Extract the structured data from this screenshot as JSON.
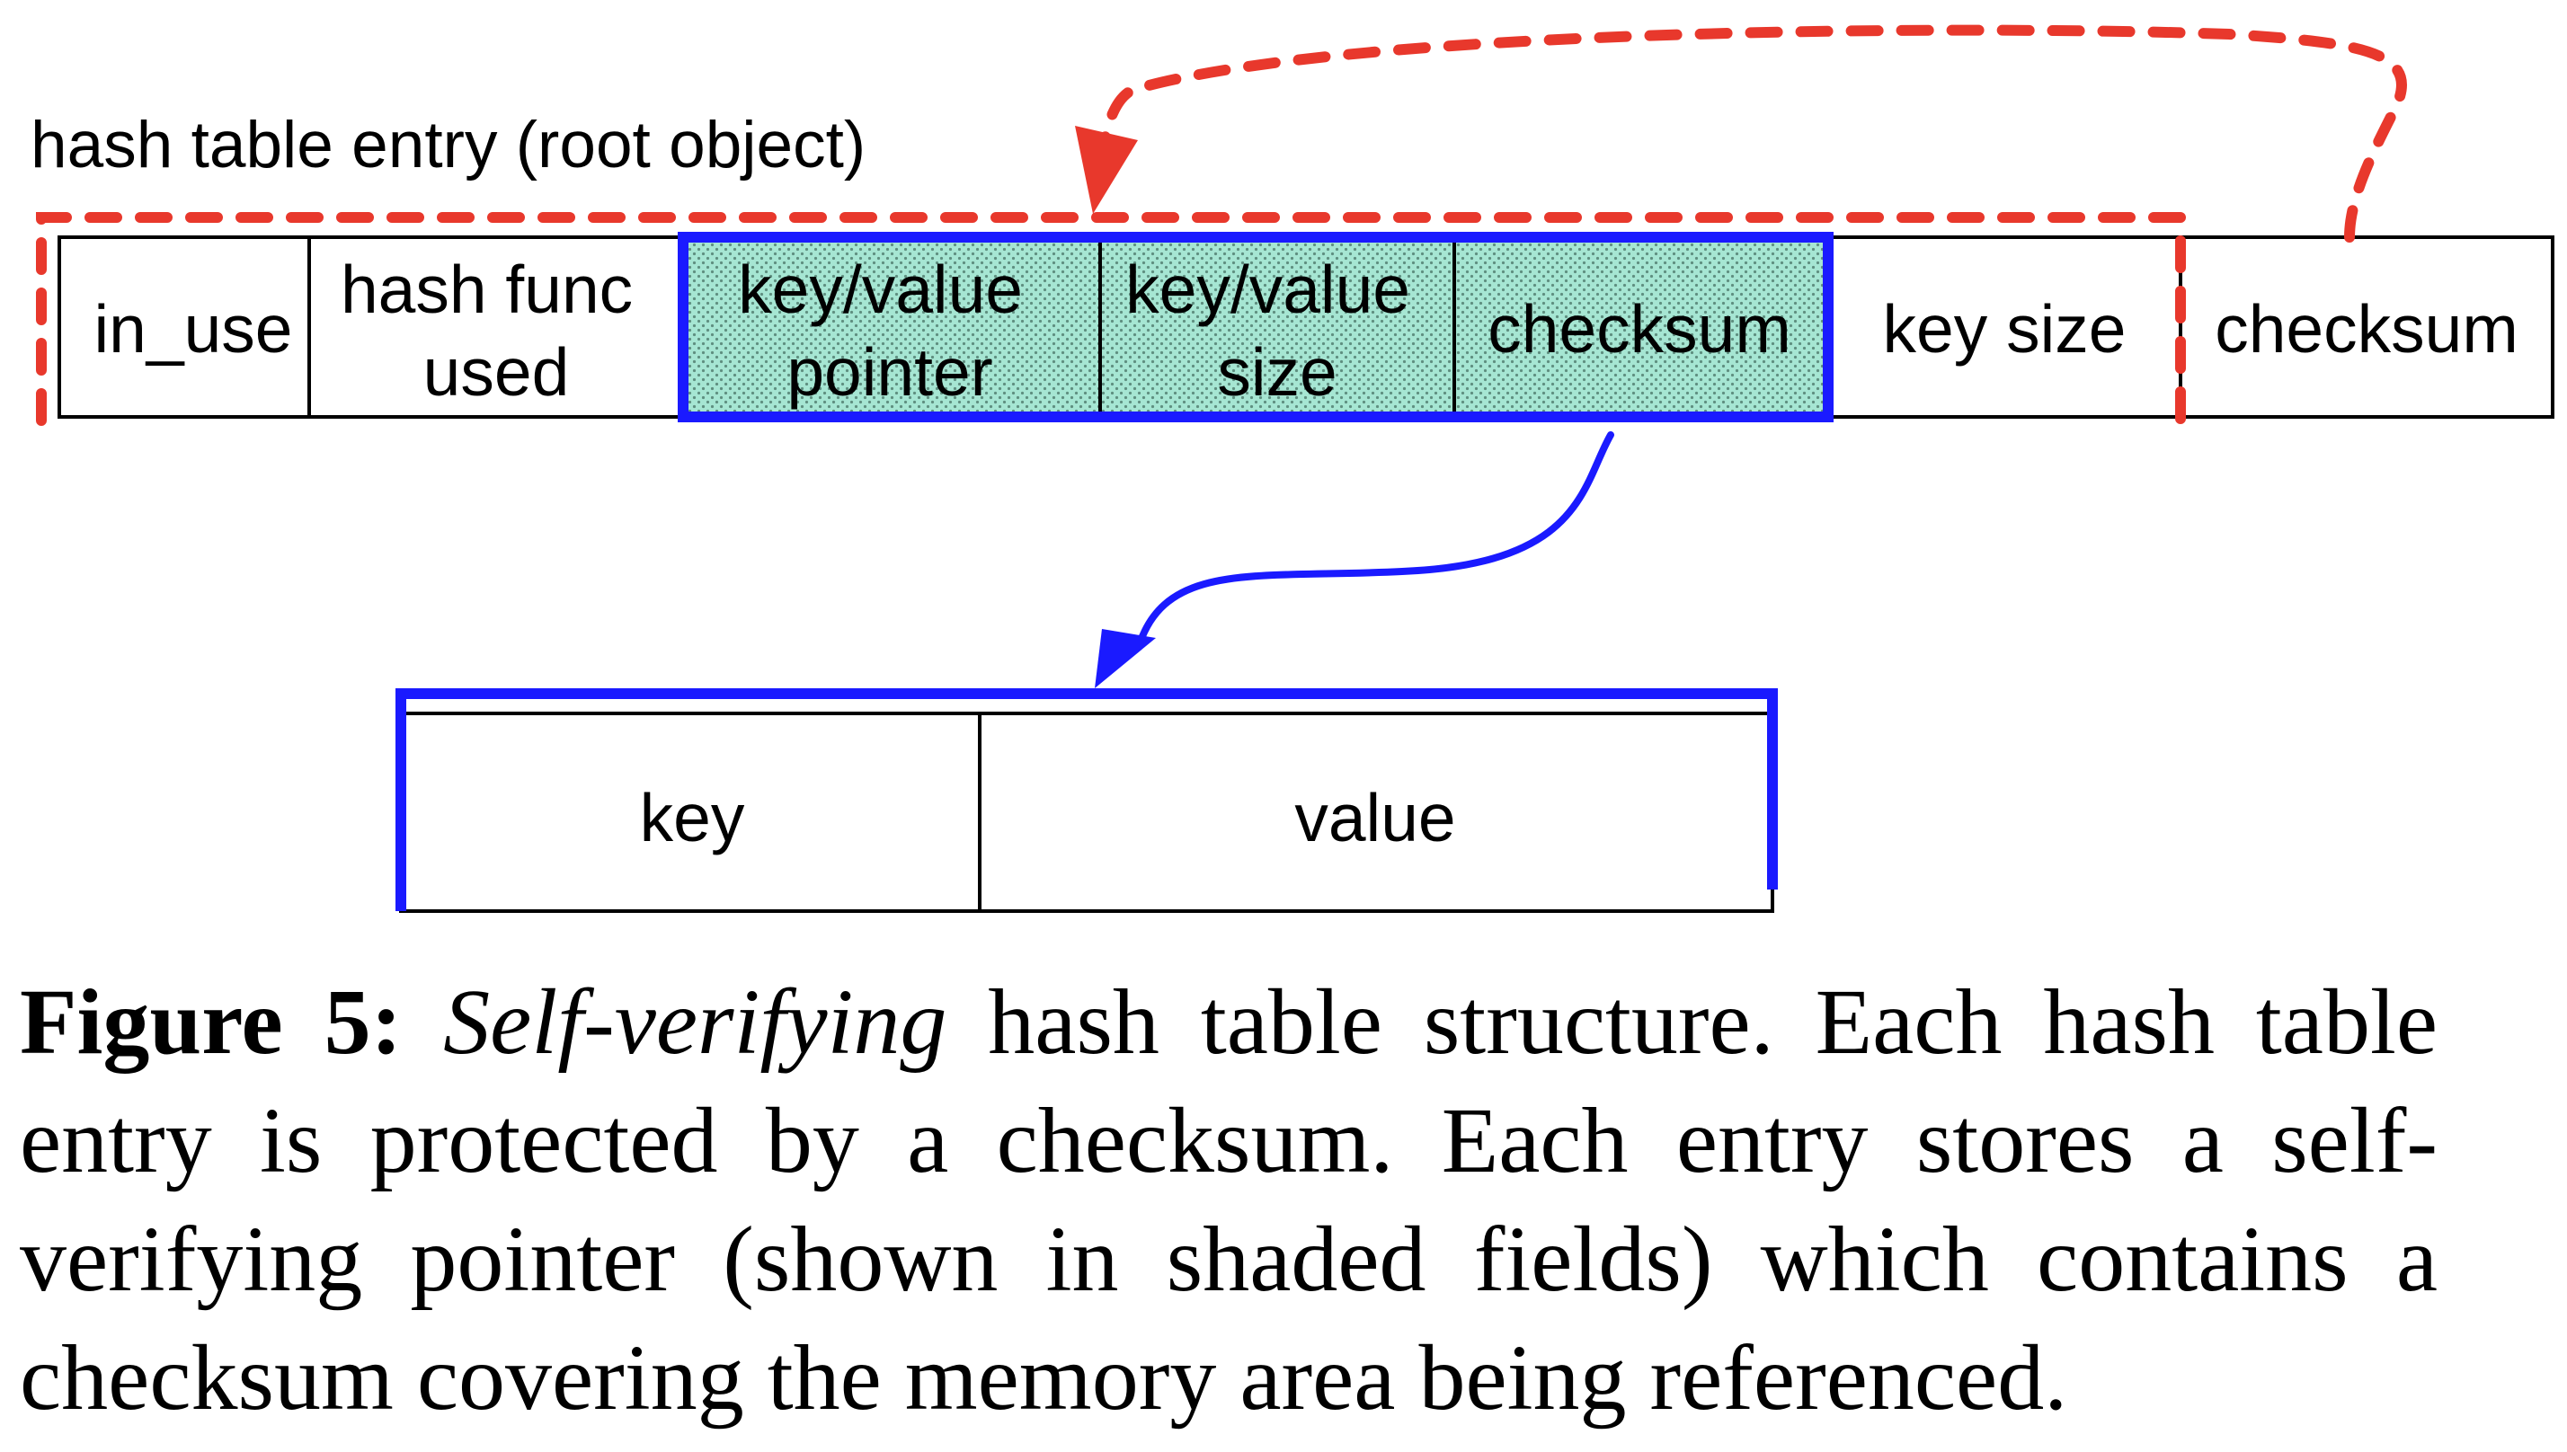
{
  "diagram": {
    "title": "hash table entry (root object)",
    "entry_fields": [
      {
        "id": "in-use",
        "lines": [
          "in_use"
        ],
        "shaded": false
      },
      {
        "id": "hash-func-used",
        "lines": [
          "hash func",
          "used"
        ],
        "shaded": false
      },
      {
        "id": "key-value-pointer",
        "lines": [
          "key/value",
          "pointer"
        ],
        "shaded": true
      },
      {
        "id": "key-value-size",
        "lines": [
          "key/value",
          "size"
        ],
        "shaded": true
      },
      {
        "id": "pointer-checksum",
        "lines": [
          "checksum"
        ],
        "shaded": true
      },
      {
        "id": "key-size",
        "lines": [
          "key size"
        ],
        "shaded": false
      },
      {
        "id": "entry-checksum",
        "lines": [
          "checksum"
        ],
        "shaded": false
      }
    ],
    "data_fields": [
      {
        "id": "key",
        "lines": [
          "key"
        ]
      },
      {
        "id": "value",
        "lines": [
          "value"
        ]
      }
    ],
    "colors": {
      "protected_region": "#e8382c",
      "self_verifying_pointer": "#1a1aff",
      "shade_fill": "#9fe3cf",
      "line": "#000000"
    }
  },
  "caption": {
    "label": "Figure 5:",
    "emphasis": "Self-verifying",
    "text": " hash table structure. Each hash table entry is protected by a checksum. Each entry stores a self-verifying pointer (shown in shaded fields) which contains a checksum covering the memory area being referenced."
  }
}
